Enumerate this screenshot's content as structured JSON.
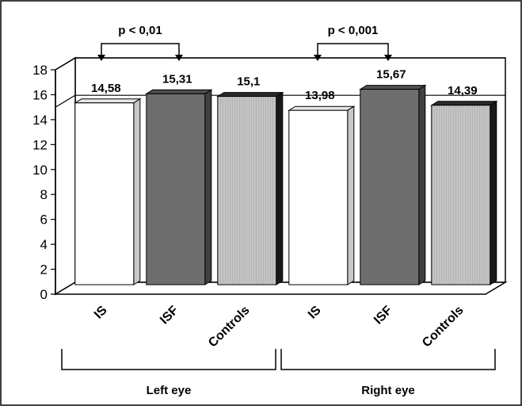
{
  "chart_data": {
    "type": "bar",
    "style": "3d",
    "categories": [
      "IS",
      "ISF",
      "Controls",
      "IS",
      "ISF",
      "Controls"
    ],
    "values": [
      14.58,
      15.31,
      15.1,
      13.98,
      15.67,
      14.39
    ],
    "value_labels": [
      "14,58",
      "15,31",
      "15,1",
      "13,98",
      "15,67",
      "14,39"
    ],
    "bar_fills": [
      "white",
      "dark-gray",
      "light-gray-striped",
      "white",
      "dark-gray",
      "light-gray-striped"
    ],
    "yticks": [
      0,
      2,
      4,
      6,
      8,
      10,
      12,
      14,
      16,
      18
    ],
    "ylim": [
      0,
      18
    ],
    "grid": "horizontal lines at 15 and 18",
    "groups": [
      {
        "label": "Left eye",
        "categories": [
          "IS",
          "ISF",
          "Controls"
        ]
      },
      {
        "label": "Right eye",
        "categories": [
          "IS",
          "ISF",
          "Controls"
        ]
      }
    ],
    "annotations": [
      {
        "text": "p < 0,01",
        "between": [
          "IS",
          "ISF"
        ],
        "group": "Left eye"
      },
      {
        "text": "p < 0,001",
        "between": [
          "IS",
          "ISF"
        ],
        "group": "Right eye"
      }
    ],
    "title": "",
    "xlabel": "",
    "ylabel": ""
  },
  "colors": {
    "white_bar": "#ffffff",
    "dark_bar": "#6e6e6e",
    "dark_bar_side": "#404040",
    "light_bar": "#b5b5b5",
    "light_bar_side": "#1a1a1a",
    "wall": "#ffffff",
    "floor": "#ffffff",
    "line": "#000000"
  }
}
